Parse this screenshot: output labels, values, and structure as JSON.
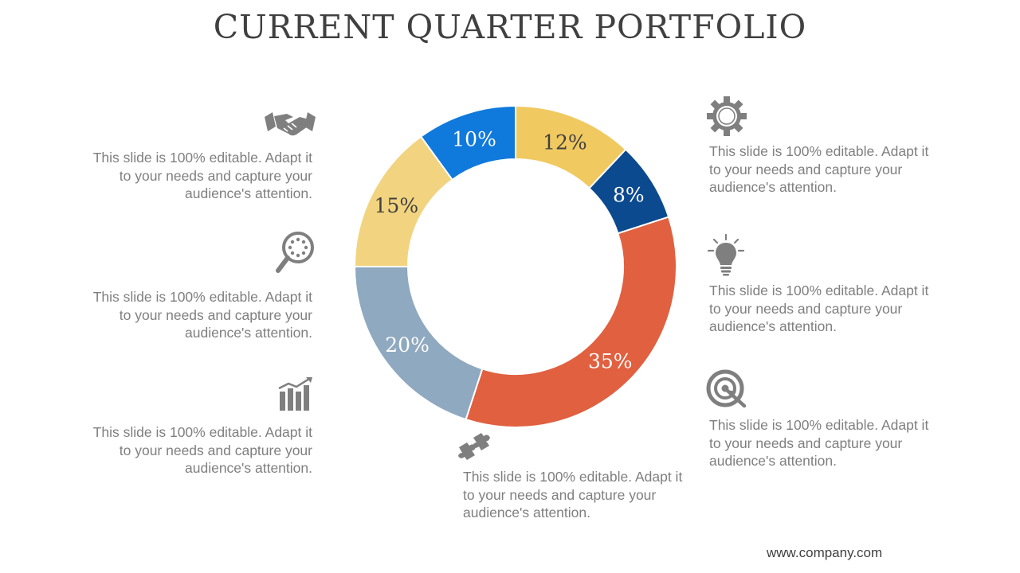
{
  "title": "CURRENT QUARTER PORTFOLIO",
  "footer": "www.company.com",
  "descriptions": {
    "left_top": "This slide is 100% editable. Adapt it to your needs and capture your audience's attention.",
    "left_middle": "This slide is 100% editable. Adapt it to your needs and capture your audience's attention.",
    "left_bottom": "This slide is 100% editable. Adapt it to your needs and capture your audience's attention.",
    "right_top": "This slide is 100% editable. Adapt it to your needs and capture your audience's attention.",
    "right_middle": "This slide is 100% editable. Adapt it to your needs and capture your audience's attention.",
    "right_bottom": "This slide is 100% editable. Adapt it to your needs and capture your audience's attention.",
    "bottom_center": "This slide is 100% editable. Adapt it to your needs and capture your audience's attention."
  },
  "icons": {
    "left_top": "handshake-icon",
    "left_middle": "magnifier-icon",
    "left_bottom": "growth-chart-icon",
    "right_top": "gear-icon",
    "right_middle": "lightbulb-icon",
    "right_bottom": "target-icon",
    "bottom_center": "puzzle-icon"
  },
  "colors": {
    "icon": "#7f7f7f"
  },
  "chart_data": {
    "type": "pie",
    "style": "donut",
    "title": "",
    "start": "top, clockwise",
    "slices": [
      {
        "label": "12%",
        "value": 12,
        "color": "#f0c961",
        "label_color": "#404040"
      },
      {
        "label": "8%",
        "value": 8,
        "color": "#0c4a8f",
        "label_color": "#ffffff"
      },
      {
        "label": "35%",
        "value": 35,
        "color": "#e06040",
        "label_color": "#ffffff"
      },
      {
        "label": "20%",
        "value": 20,
        "color": "#8fa9c0",
        "label_color": "#ffffff"
      },
      {
        "label": "15%",
        "value": 15,
        "color": "#f2d480",
        "label_color": "#404040"
      },
      {
        "label": "10%",
        "value": 10,
        "color": "#0f79dc",
        "label_color": "#ffffff"
      }
    ]
  }
}
